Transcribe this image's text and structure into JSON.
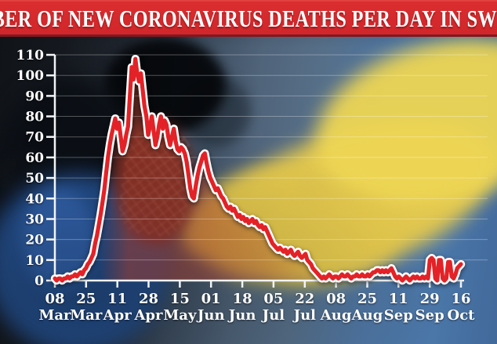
{
  "banner": {
    "title": "NUMBER OF NEW CORONAVIRUS DEATHS PER DAY IN SWEDEN"
  },
  "palette": {
    "banner_red": "#d0252a",
    "banner_red_light": "#da2e30",
    "line_red": "#e32227",
    "line_outline": "#ffffff",
    "area_red": "#a83c2b",
    "axis_white": "#f2f4f6",
    "gridline": "#ffffff",
    "flag_yellow": "#e5c94d",
    "flag_yellow_bright": "#eed654",
    "flag_blue": "#4a76a8",
    "photo_dark": "#0a0e14",
    "hair_black": "#05070a",
    "jacket_blue": "#24508f",
    "jacket_blue_light": "#3567b4",
    "scarf_maroon": "#6b241c"
  },
  "chart_data": {
    "type": "line",
    "title": "Number of new coronavirus deaths per day in Sweden",
    "xlabel": "",
    "ylabel": "",
    "ylim": [
      0,
      110
    ],
    "y_ticks": [
      0,
      10,
      20,
      30,
      40,
      50,
      60,
      70,
      80,
      90,
      100,
      110
    ],
    "grid": true,
    "legend": "none",
    "x_ticks": [
      {
        "day": "08",
        "month": "Mar"
      },
      {
        "day": "25",
        "month": "Mar"
      },
      {
        "day": "11",
        "month": "Apr"
      },
      {
        "day": "28",
        "month": "Apr"
      },
      {
        "day": "15",
        "month": "May"
      },
      {
        "day": "01",
        "month": "Jun"
      },
      {
        "day": "18",
        "month": "Jun"
      },
      {
        "day": "05",
        "month": "Jul"
      },
      {
        "day": "22",
        "month": "Jul"
      },
      {
        "day": "08",
        "month": "Aug"
      },
      {
        "day": "25",
        "month": "Aug"
      },
      {
        "day": "11",
        "month": "Sep"
      },
      {
        "day": "29",
        "month": "Sep"
      },
      {
        "day": "16",
        "month": "Oct"
      }
    ],
    "series": [
      {
        "name": "New deaths per day",
        "start_label": "08 Mar",
        "end_label": "16 Oct",
        "cadence": "daily",
        "values": [
          1,
          0,
          1,
          1,
          0,
          1,
          1,
          2,
          1,
          2,
          2,
          3,
          2,
          3,
          4,
          3,
          5,
          6,
          8,
          9,
          11,
          13,
          18,
          22,
          27,
          32,
          38,
          44,
          52,
          60,
          66,
          71,
          75,
          79,
          74,
          77,
          70,
          63,
          66,
          71,
          75,
          90,
          104,
          98,
          108,
          101,
          97,
          101,
          93,
          85,
          80,
          71,
          75,
          80,
          73,
          66,
          70,
          76,
          80,
          74,
          78,
          76,
          70,
          66,
          70,
          74,
          68,
          64,
          63,
          65,
          64,
          62,
          58,
          52,
          45,
          41,
          40,
          46,
          51,
          55,
          58,
          61,
          62,
          57,
          53,
          50,
          48,
          46,
          44,
          45,
          43,
          41,
          40,
          38,
          36,
          35,
          36,
          34,
          35,
          33,
          31,
          32,
          30,
          31,
          29,
          30,
          28,
          29,
          30,
          28,
          29,
          27,
          26,
          27,
          25,
          26,
          24,
          22,
          20,
          18,
          17,
          16,
          15,
          16,
          15,
          14,
          15,
          13,
          14,
          15,
          13,
          12,
          13,
          14,
          12,
          11,
          12,
          13,
          10,
          9,
          8,
          6,
          5,
          4,
          3,
          2,
          1,
          2,
          1,
          2,
          3,
          2,
          1,
          2,
          2,
          1,
          2,
          3,
          2,
          2,
          3,
          2,
          1,
          2,
          2,
          3,
          2,
          2,
          3,
          2,
          2,
          3,
          2,
          3,
          4,
          4,
          5,
          5,
          4,
          5,
          4,
          5,
          4,
          5,
          6,
          4,
          2,
          1,
          2,
          1,
          0,
          1,
          2,
          1,
          0,
          1,
          2,
          1,
          2,
          1,
          1,
          2,
          1,
          2,
          1,
          10,
          11,
          10,
          1,
          0,
          10,
          10,
          1,
          0,
          1,
          9,
          9,
          2,
          1,
          3,
          6,
          7,
          8
        ]
      }
    ]
  }
}
